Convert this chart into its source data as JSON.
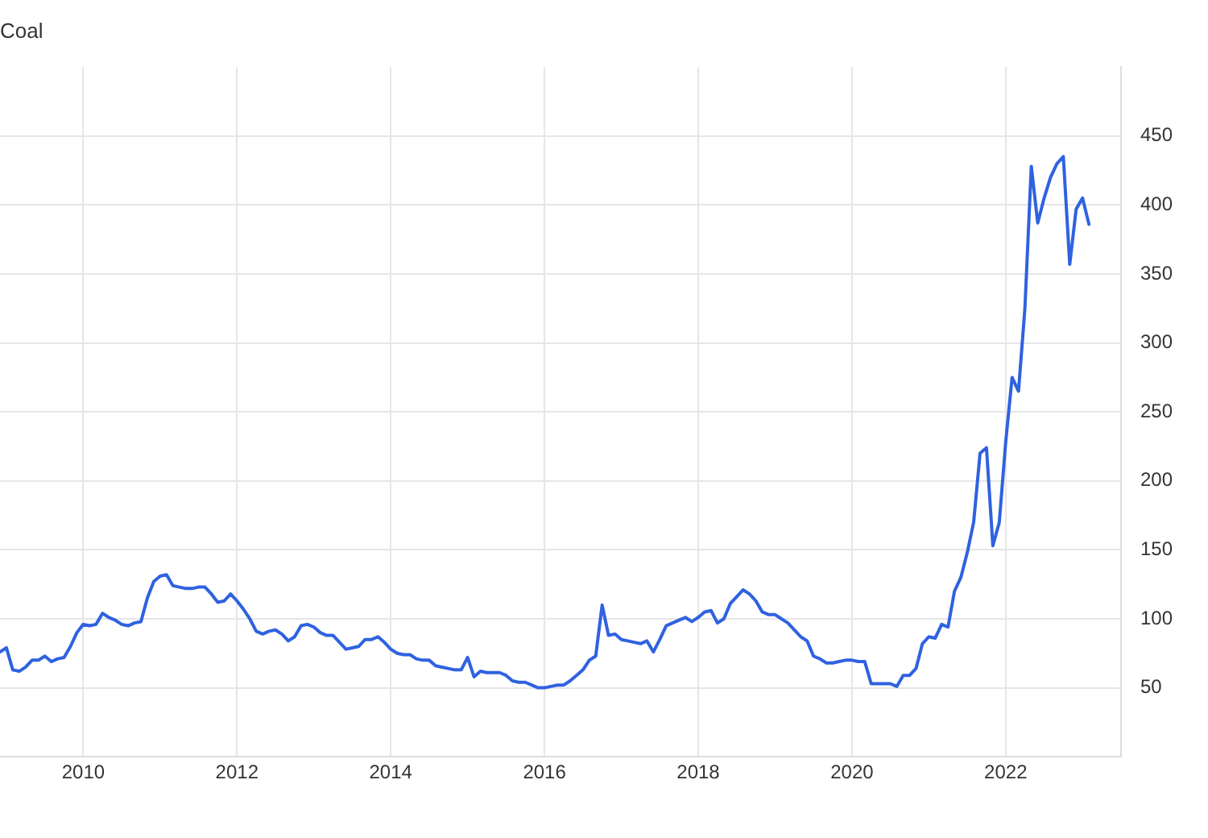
{
  "chart_data": {
    "type": "line",
    "title": "Coal",
    "x": [
      "2008-12",
      "2009-01",
      "2009-02",
      "2009-03",
      "2009-04",
      "2009-05",
      "2009-06",
      "2009-07",
      "2009-08",
      "2009-09",
      "2009-10",
      "2009-11",
      "2009-12",
      "2010-01",
      "2010-02",
      "2010-03",
      "2010-04",
      "2010-05",
      "2010-06",
      "2010-07",
      "2010-08",
      "2010-09",
      "2010-10",
      "2010-11",
      "2010-12",
      "2011-01",
      "2011-02",
      "2011-03",
      "2011-04",
      "2011-05",
      "2011-06",
      "2011-07",
      "2011-08",
      "2011-09",
      "2011-10",
      "2011-11",
      "2011-12",
      "2012-01",
      "2012-02",
      "2012-03",
      "2012-04",
      "2012-05",
      "2012-06",
      "2012-07",
      "2012-08",
      "2012-09",
      "2012-10",
      "2012-11",
      "2012-12",
      "2013-01",
      "2013-02",
      "2013-03",
      "2013-04",
      "2013-05",
      "2013-06",
      "2013-07",
      "2013-08",
      "2013-09",
      "2013-10",
      "2013-11",
      "2013-12",
      "2014-01",
      "2014-02",
      "2014-03",
      "2014-04",
      "2014-05",
      "2014-06",
      "2014-07",
      "2014-08",
      "2014-09",
      "2014-10",
      "2014-11",
      "2014-12",
      "2015-01",
      "2015-02",
      "2015-03",
      "2015-04",
      "2015-05",
      "2015-06",
      "2015-07",
      "2015-08",
      "2015-09",
      "2015-10",
      "2015-11",
      "2015-12",
      "2016-01",
      "2016-02",
      "2016-03",
      "2016-04",
      "2016-05",
      "2016-06",
      "2016-07",
      "2016-08",
      "2016-09",
      "2016-10",
      "2016-11",
      "2016-12",
      "2017-01",
      "2017-02",
      "2017-03",
      "2017-04",
      "2017-05",
      "2017-06",
      "2017-07",
      "2017-08",
      "2017-09",
      "2017-10",
      "2017-11",
      "2017-12",
      "2018-01",
      "2018-02",
      "2018-03",
      "2018-04",
      "2018-05",
      "2018-06",
      "2018-07",
      "2018-08",
      "2018-09",
      "2018-10",
      "2018-11",
      "2018-12",
      "2019-01",
      "2019-02",
      "2019-03",
      "2019-04",
      "2019-05",
      "2019-06",
      "2019-07",
      "2019-08",
      "2019-09",
      "2019-10",
      "2019-11",
      "2019-12",
      "2020-01",
      "2020-02",
      "2020-03",
      "2020-04",
      "2020-05",
      "2020-06",
      "2020-07",
      "2020-08",
      "2020-09",
      "2020-10",
      "2020-11",
      "2020-12",
      "2021-01",
      "2021-02",
      "2021-03",
      "2021-04",
      "2021-05",
      "2021-06",
      "2021-07",
      "2021-08",
      "2021-09",
      "2021-10",
      "2021-11",
      "2021-12",
      "2022-01",
      "2022-02",
      "2022-03",
      "2022-04",
      "2022-05",
      "2022-06",
      "2022-07",
      "2022-08",
      "2022-09",
      "2022-10",
      "2022-11",
      "2022-12",
      "2023-01",
      "2023-02"
    ],
    "series": [
      {
        "color": "#2f62e0",
        "values": [
          76,
          79,
          63,
          62,
          65,
          70,
          70,
          73,
          69,
          71,
          72,
          80,
          90,
          96,
          95,
          96,
          104,
          101,
          99,
          96,
          95,
          97,
          98,
          115,
          127,
          131,
          132,
          124,
          123,
          122,
          122,
          123,
          123,
          118,
          112,
          113,
          118,
          113,
          107,
          100,
          91,
          89,
          91,
          92,
          89,
          84,
          87,
          95,
          96,
          94,
          90,
          88,
          88,
          83,
          78,
          79,
          80,
          85,
          85,
          87,
          83,
          78,
          75,
          74,
          74,
          71,
          70,
          70,
          66,
          65,
          64,
          63,
          63,
          72,
          58,
          62,
          61,
          61,
          61,
          59,
          55,
          54,
          54,
          52,
          50,
          50,
          51,
          52,
          52,
          55,
          59,
          63,
          70,
          73,
          110,
          88,
          89,
          85,
          84,
          83,
          82,
          84,
          76,
          85,
          95,
          97,
          99,
          101,
          98,
          101,
          105,
          106,
          97,
          100,
          111,
          116,
          121,
          118,
          113,
          105,
          103,
          103,
          100,
          97,
          92,
          87,
          84,
          73,
          71,
          68,
          68,
          69,
          70,
          70,
          69,
          69,
          53,
          53,
          53,
          53,
          51,
          59,
          59,
          64,
          82,
          87,
          86,
          96,
          94,
          120,
          130,
          148,
          170,
          220,
          224,
          153,
          170,
          228,
          275,
          265,
          325,
          428,
          387,
          405,
          420,
          430,
          435,
          357,
          397,
          405,
          386
        ]
      }
    ],
    "xlim": [
      "2008-12",
      "2023-07"
    ],
    "xticks": [
      "2010",
      "2012",
      "2014",
      "2016",
      "2018",
      "2020",
      "2022"
    ],
    "ylim": [
      0,
      500
    ],
    "yticks": [
      50,
      100,
      150,
      200,
      250,
      300,
      350,
      400,
      450
    ],
    "grid": true,
    "legend": false,
    "marker": "none",
    "line_style": "solid"
  }
}
